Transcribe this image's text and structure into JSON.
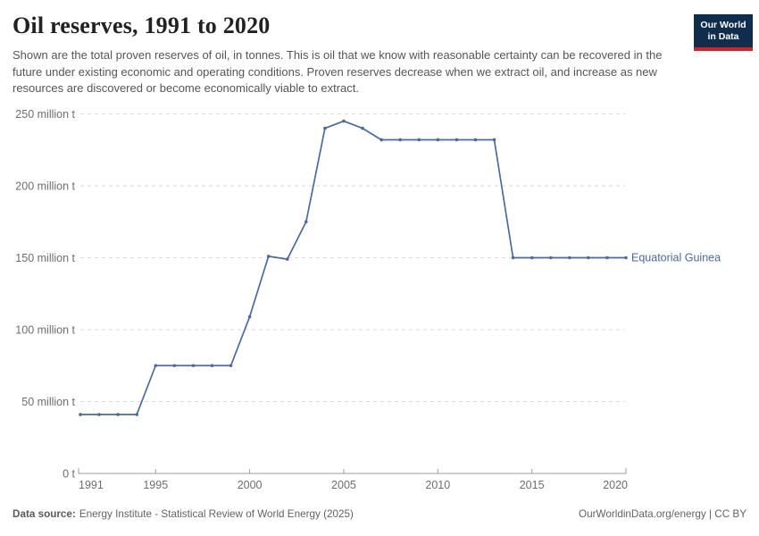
{
  "header": {
    "title": "Oil reserves, 1991 to 2020",
    "subtitle": "Shown are the total proven reserves of oil, in tonnes. This is oil that we know with reasonable certainty can be recovered in the future under existing economic and operating conditions. Proven reserves decrease when we extract oil, and increase as new resources are discovered or become economically viable to extract.",
    "logo": {
      "line1": "Our World",
      "line2": "in Data",
      "bg_color": "#102d4e",
      "bar_color": "#cc2428"
    }
  },
  "chart_data": {
    "type": "line",
    "title": "Oil reserves, 1991 to 2020",
    "unit": "million t",
    "xlim": [
      1991,
      2020
    ],
    "ylim": [
      0,
      250
    ],
    "grid": "horizontal dashed",
    "legend_position": "end-of-line label",
    "x_ticks": [
      1991,
      1995,
      2000,
      2005,
      2010,
      2015,
      2020
    ],
    "y_ticks": [
      {
        "value": 0,
        "label": "0 t"
      },
      {
        "value": 50,
        "label": "50 million t"
      },
      {
        "value": 100,
        "label": "100 million t"
      },
      {
        "value": 150,
        "label": "150 million t"
      },
      {
        "value": 200,
        "label": "200 million t"
      },
      {
        "value": 250,
        "label": "250 million t"
      }
    ],
    "series": [
      {
        "name": "Equatorial Guinea",
        "color": "#4c6a9c",
        "x": [
          1991,
          1992,
          1993,
          1994,
          1995,
          1996,
          1997,
          1998,
          1999,
          2000,
          2001,
          2002,
          2003,
          2004,
          2005,
          2006,
          2007,
          2008,
          2009,
          2010,
          2011,
          2012,
          2013,
          2014,
          2015,
          2016,
          2017,
          2018,
          2019,
          2020
        ],
        "values": [
          41,
          41,
          41,
          41,
          75,
          75,
          75,
          75,
          75,
          109,
          151,
          149,
          175,
          240,
          245,
          240,
          232,
          232,
          232,
          232,
          232,
          232,
          232,
          150,
          150,
          150,
          150,
          150,
          150,
          150
        ]
      }
    ]
  },
  "footer": {
    "source_label": "Data source:",
    "source_text": "Energy Institute - Statistical Review of World Energy (2025)",
    "credit": "OurWorldinData.org/energy | CC BY"
  },
  "colors": {
    "line": "#4c6a9c",
    "gridline": "#dadada",
    "axis": "#9e9e9e",
    "tick_label": "#6e6e6e",
    "title": "#222222",
    "subtitle": "#555555"
  }
}
